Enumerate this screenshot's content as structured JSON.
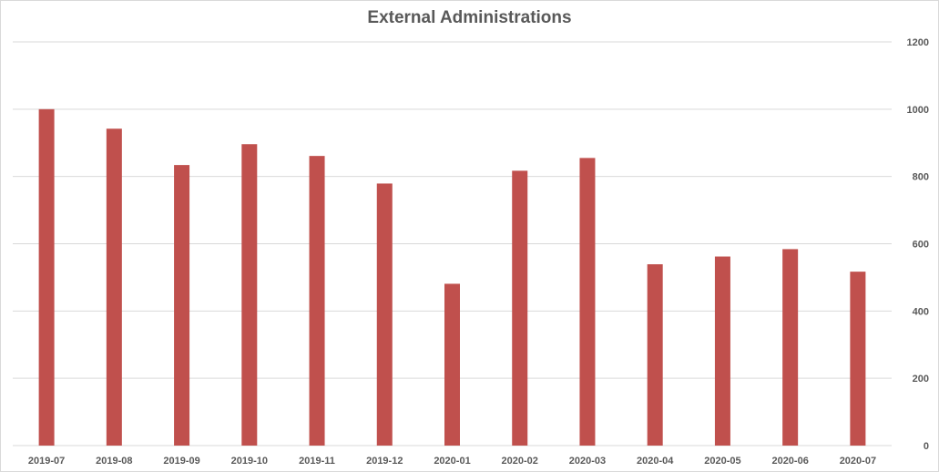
{
  "chart_data": {
    "type": "bar",
    "title": "External Administrations",
    "xlabel": "",
    "ylabel": "",
    "categories": [
      "2019-07",
      "2019-08",
      "2019-09",
      "2019-10",
      "2019-11",
      "2019-12",
      "2020-01",
      "2020-02",
      "2020-03",
      "2020-04",
      "2020-05",
      "2020-06",
      "2020-07"
    ],
    "values": [
      1000,
      942,
      834,
      896,
      861,
      779,
      481,
      817,
      855,
      539,
      562,
      584,
      517
    ],
    "ylim": [
      0,
      1200
    ],
    "yticks": [
      "0",
      "200",
      "400",
      "600",
      "800",
      "1000",
      "1200"
    ],
    "y_axis_side": "right",
    "grid": true,
    "legend": "none",
    "bar_color": "#c0504d",
    "grid_color": "#d9d9d9"
  }
}
